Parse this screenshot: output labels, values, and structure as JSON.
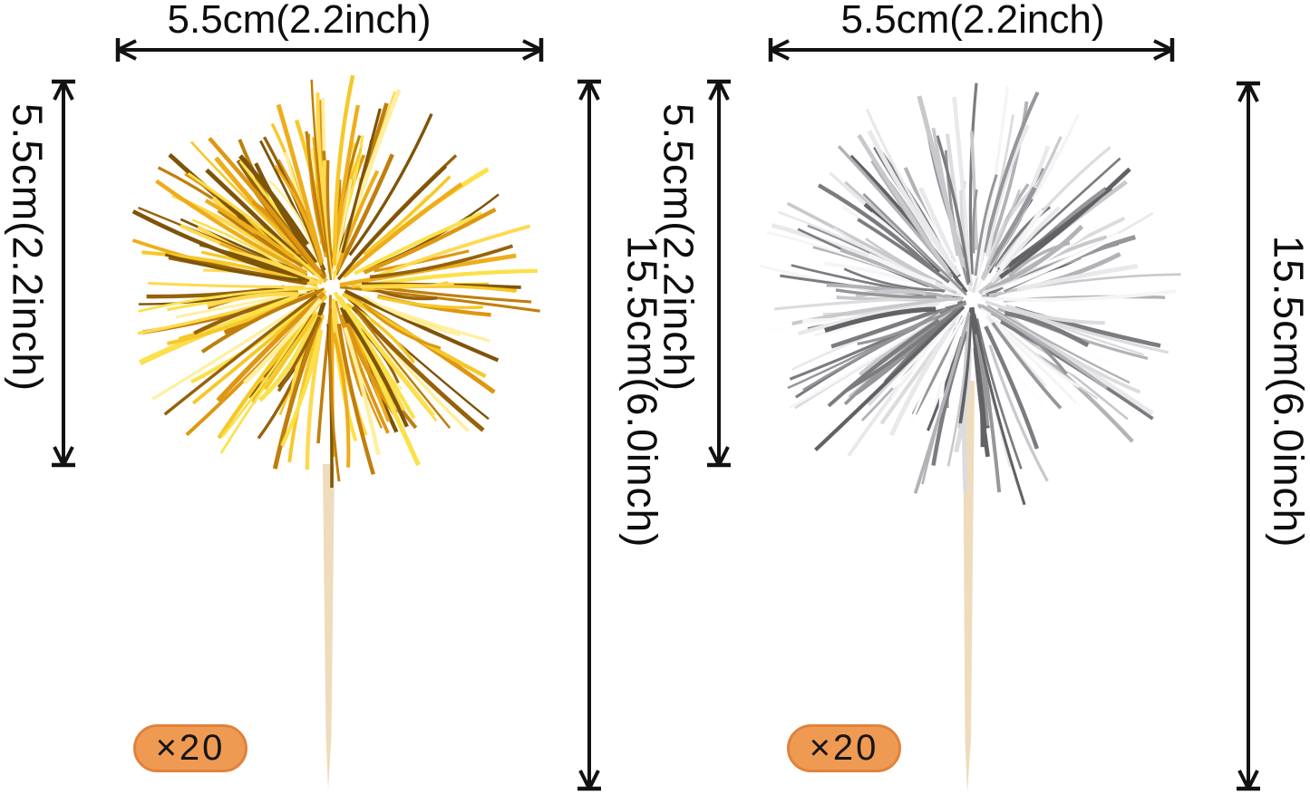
{
  "products": [
    {
      "id": "gold",
      "name": "gold tinsel cupcake topper",
      "width_label": "5.5cm(2.2inch)",
      "pom_height_label": "5.5cm(2.2inch)",
      "total_height_label": "15.5cm(6.0inch)",
      "quantity": "×20",
      "tinsel_palette": [
        "#fbe14a",
        "#f6c829",
        "#eead1b",
        "#de9713",
        "#c07f0d",
        "#96620a",
        "#ffd94f",
        "#7e5407",
        "#ffefa0"
      ]
    },
    {
      "id": "silver",
      "name": "silver tinsel cupcake topper",
      "width_label": "5.5cm(2.2inch)",
      "pom_height_label": "5.5cm(2.2inch)",
      "total_height_label": "15.5cm(6.0inch)",
      "quantity": "×20",
      "tinsel_palette": [
        "#f5f5f6",
        "#e9e9ec",
        "#dcdcdf",
        "#c9c9cd",
        "#b3b3b7",
        "#97979b",
        "#7c7c80",
        "#626266",
        "#fdfdfd"
      ]
    }
  ],
  "colors": {
    "background": "#ffffff",
    "arrow": "#121212",
    "label_text": "#0d0d0d",
    "stick": "#eedcbc",
    "badge_bg": "#ef9a52",
    "badge_border": "#e0823c",
    "badge_text": "#151515"
  }
}
